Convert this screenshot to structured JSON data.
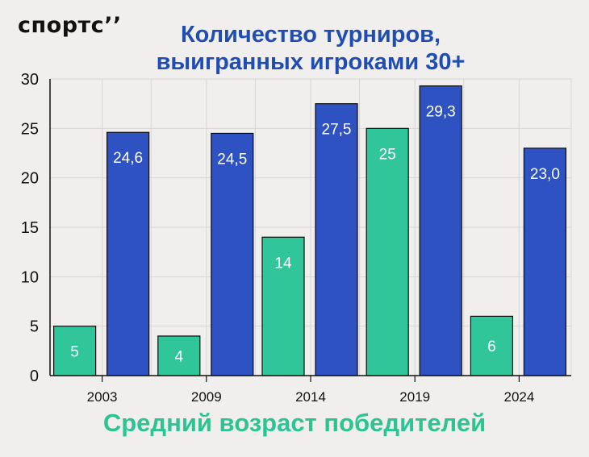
{
  "logo": "спортс’’",
  "colors": {
    "green": "#31c699",
    "blue": "#2e52c2",
    "title": "#1f4db3",
    "grid": "#d6d6d6"
  },
  "chart_data": {
    "type": "bar",
    "title_lines": [
      "Количество турниров,",
      "выигранных игроками 30+"
    ],
    "xlabel": "Средний возраст победителей",
    "ylabel": "",
    "ylim": [
      0,
      30
    ],
    "yticks": [
      0,
      5,
      10,
      15,
      20,
      25,
      30
    ],
    "grid": true,
    "categories": [
      "2003",
      "2009",
      "2014",
      "2019",
      "2024"
    ],
    "series": [
      {
        "values": [
          5,
          4,
          14,
          25,
          6
        ],
        "labels": [
          "5",
          "4",
          "14",
          "25",
          "6"
        ],
        "color": "#31c699"
      },
      {
        "values": [
          24.6,
          24.5,
          27.5,
          29.3,
          23.0
        ],
        "labels": [
          "24,6",
          "24,5",
          "27,5",
          "29,3",
          "23,0"
        ],
        "color": "#2e52c2"
      }
    ]
  }
}
